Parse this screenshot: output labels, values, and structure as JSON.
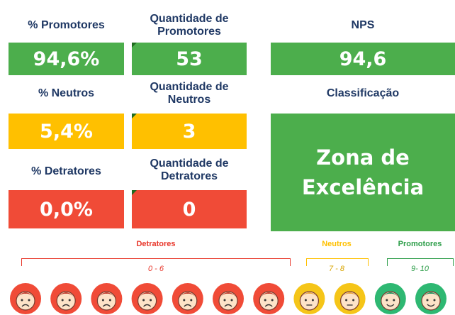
{
  "metrics": [
    {
      "label": "% Promotores",
      "value": "94,6%"
    },
    {
      "label": "% Neutros",
      "value": "5,4%"
    },
    {
      "label": "% Detratores",
      "value": "0,0%"
    }
  ],
  "counts": [
    {
      "label": "Quantidade de Promotores",
      "value": "53"
    },
    {
      "label": "Quantidade de Neutros",
      "value": "3"
    },
    {
      "label": "Quantidade de Detratores",
      "value": "0"
    }
  ],
  "nps": {
    "label": "NPS",
    "value": "94,6"
  },
  "classification": {
    "label": "Classificação",
    "value": "Zona de Excelência"
  },
  "scale": [
    {
      "label": "Detratores",
      "range": "0 - 6"
    },
    {
      "label": "Neutros",
      "range": "7 - 8"
    },
    {
      "label": "Promotores",
      "range": "9- 10"
    }
  ]
}
